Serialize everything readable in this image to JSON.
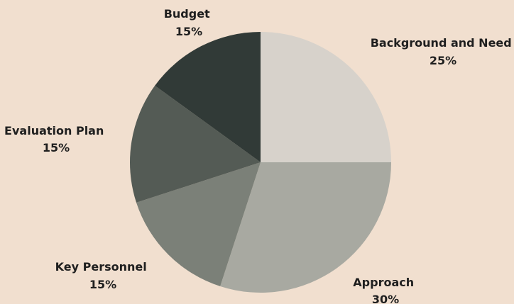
{
  "chart_data": {
    "type": "pie",
    "slices": [
      {
        "label": "Background and Need",
        "value": 25,
        "display": "25%",
        "color": "#d7d2cb"
      },
      {
        "label": "Approach",
        "value": 30,
        "display": "30%",
        "color": "#a8a9a1"
      },
      {
        "label": "Key Personnel",
        "value": 15,
        "display": "15%",
        "color": "#7b8078"
      },
      {
        "label": "Evaluation Plan",
        "value": 15,
        "display": "15%",
        "color": "#545b55"
      },
      {
        "label": "Budget",
        "value": 15,
        "display": "15%",
        "color": "#313a37"
      }
    ],
    "start_angle_deg": 0,
    "direction": "clockwise",
    "legend": "none",
    "colors": {
      "background": "#f1dfcf",
      "text": "#1f1f1f"
    }
  }
}
